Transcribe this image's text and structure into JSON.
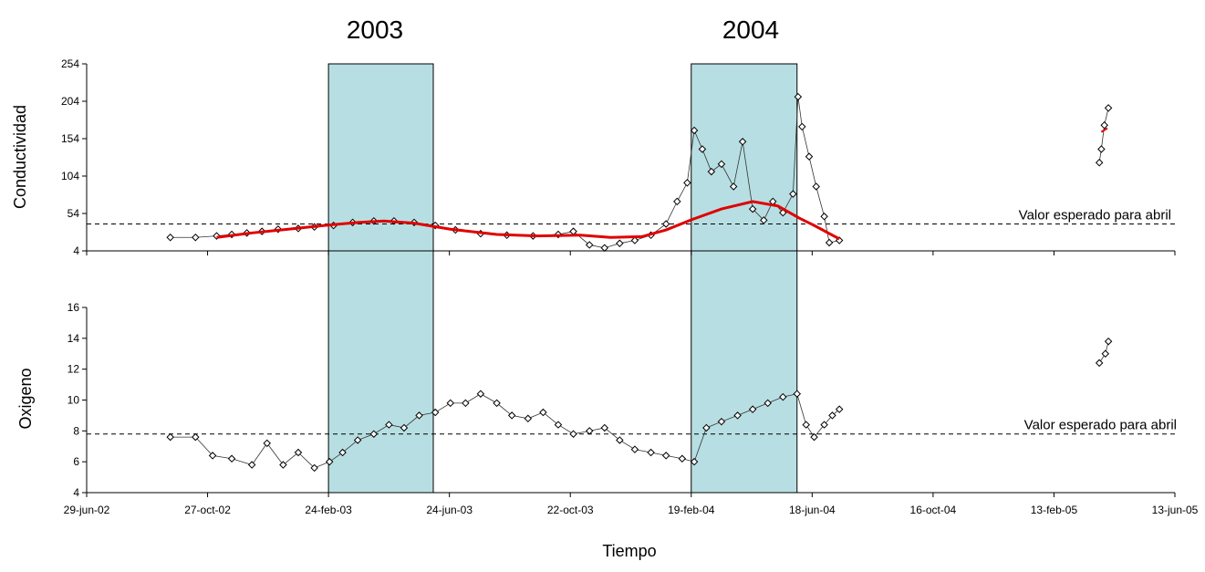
{
  "chart_data": {
    "type": "scatter",
    "period_labels": [
      "2003",
      "2004"
    ],
    "shaded_periods": [
      {
        "label": "2003",
        "start": "2003-02-24",
        "end": "2003-06-08"
      },
      {
        "label": "2004",
        "start": "2004-02-19",
        "end": "2004-06-03"
      }
    ],
    "xlabel": "Tiempo",
    "x_ticks": [
      "29-jun-02",
      "27-oct-02",
      "24-feb-03",
      "24-jun-03",
      "22-oct-03",
      "19-feb-04",
      "18-jun-04",
      "16-oct-04",
      "13-feb-05",
      "13-jun-05"
    ],
    "x_tick_dates": [
      "2002-06-29",
      "2002-10-27",
      "2003-02-24",
      "2003-06-24",
      "2003-10-22",
      "2004-02-19",
      "2004-06-18",
      "2004-10-16",
      "2005-02-13",
      "2005-06-13"
    ],
    "xlim": [
      "2002-06-29",
      "2005-06-13"
    ],
    "panels": [
      {
        "ylabel": "Conductividad",
        "ylim": [
          4,
          254
        ],
        "y_ticks": [
          "4",
          "54",
          "104",
          "154",
          "204",
          "254"
        ],
        "reference_line": {
          "value": 40,
          "label": "Valor esperado para abril"
        },
        "trend_color": "#e00000",
        "trend": [
          [
            "2002-11-05",
            22
          ],
          [
            "2002-12-10",
            28
          ],
          [
            "2003-01-15",
            33
          ],
          [
            "2003-02-20",
            38
          ],
          [
            "2003-03-25",
            42
          ],
          [
            "2003-04-20",
            44
          ],
          [
            "2003-05-20",
            41
          ],
          [
            "2003-06-25",
            33
          ],
          [
            "2003-08-10",
            26
          ],
          [
            "2003-09-20",
            24
          ],
          [
            "2003-11-01",
            25
          ],
          [
            "2003-12-01",
            22
          ],
          [
            "2004-01-01",
            23
          ],
          [
            "2004-01-25",
            32
          ],
          [
            "2004-02-20",
            46
          ],
          [
            "2004-03-20",
            60
          ],
          [
            "2004-04-20",
            70
          ],
          [
            "2004-05-15",
            64
          ],
          [
            "2004-06-05",
            48
          ],
          [
            "2004-06-20",
            38
          ],
          [
            "2004-07-15",
            20
          ]
        ],
        "trend2": [
          [
            "2005-04-01",
            163
          ],
          [
            "2005-04-07",
            168
          ]
        ],
        "series": {
          "name": "",
          "points": [
            [
              "2002-09-20",
              22
            ],
            [
              "2002-10-15",
              22
            ],
            [
              "2002-11-05",
              24
            ],
            [
              "2002-11-20",
              26
            ],
            [
              "2002-12-05",
              28
            ],
            [
              "2002-12-20",
              30
            ],
            [
              "2003-01-05",
              33
            ],
            [
              "2003-01-25",
              34
            ],
            [
              "2003-02-10",
              36
            ],
            [
              "2003-03-01",
              38
            ],
            [
              "2003-03-20",
              42
            ],
            [
              "2003-04-10",
              44
            ],
            [
              "2003-04-30",
              44
            ],
            [
              "2003-05-20",
              42
            ],
            [
              "2003-06-10",
              38
            ],
            [
              "2003-06-30",
              32
            ],
            [
              "2003-07-25",
              27
            ],
            [
              "2003-08-20",
              25
            ],
            [
              "2003-09-15",
              24
            ],
            [
              "2003-10-10",
              26
            ],
            [
              "2003-10-25",
              30
            ],
            [
              "2003-11-10",
              12
            ],
            [
              "2003-11-25",
              8
            ],
            [
              "2003-12-10",
              14
            ],
            [
              "2003-12-25",
              18
            ],
            [
              "2004-01-10",
              25
            ],
            [
              "2004-01-25",
              40
            ],
            [
              "2004-02-05",
              70
            ],
            [
              "2004-02-15",
              95
            ],
            [
              "2004-02-22",
              165
            ],
            [
              "2004-03-01",
              140
            ],
            [
              "2004-03-10",
              110
            ],
            [
              "2004-03-20",
              120
            ],
            [
              "2004-04-01",
              90
            ],
            [
              "2004-04-10",
              150
            ],
            [
              "2004-04-20",
              60
            ],
            [
              "2004-05-01",
              45
            ],
            [
              "2004-05-10",
              70
            ],
            [
              "2004-05-20",
              55
            ],
            [
              "2004-05-30",
              80
            ],
            [
              "2004-06-04",
              210
            ],
            [
              "2004-06-08",
              170
            ],
            [
              "2004-06-15",
              130
            ],
            [
              "2004-06-22",
              90
            ],
            [
              "2004-06-30",
              50
            ],
            [
              "2004-07-05",
              15
            ],
            [
              "2004-07-15",
              18
            ],
            [
              "2005-03-30",
              122
            ],
            [
              "2005-04-01",
              140
            ],
            [
              "2005-04-04",
              172
            ],
            [
              "2005-04-08",
              195
            ]
          ]
        }
      },
      {
        "ylabel": "Oxigeno",
        "ylim": [
          4,
          16
        ],
        "y_ticks": [
          "4",
          "6",
          "8",
          "10",
          "12",
          "14",
          "16"
        ],
        "reference_line": {
          "value": 7.8,
          "label": "Valor esperado para abril"
        },
        "series": {
          "name": "",
          "points": [
            [
              "2002-09-20",
              7.6
            ],
            [
              "2002-10-15",
              7.6
            ],
            [
              "2002-11-01",
              6.4
            ],
            [
              "2002-11-20",
              6.2
            ],
            [
              "2002-12-10",
              5.8
            ],
            [
              "2002-12-25",
              7.2
            ],
            [
              "2003-01-10",
              5.8
            ],
            [
              "2003-01-25",
              6.6
            ],
            [
              "2003-02-10",
              5.6
            ],
            [
              "2003-02-25",
              6.0
            ],
            [
              "2003-03-10",
              6.6
            ],
            [
              "2003-03-25",
              7.4
            ],
            [
              "2003-04-10",
              7.8
            ],
            [
              "2003-04-25",
              8.4
            ],
            [
              "2003-05-10",
              8.2
            ],
            [
              "2003-05-25",
              9.0
            ],
            [
              "2003-06-10",
              9.2
            ],
            [
              "2003-06-25",
              9.8
            ],
            [
              "2003-07-10",
              9.8
            ],
            [
              "2003-07-25",
              10.4
            ],
            [
              "2003-08-10",
              9.8
            ],
            [
              "2003-08-25",
              9.0
            ],
            [
              "2003-09-10",
              8.8
            ],
            [
              "2003-09-25",
              9.2
            ],
            [
              "2003-10-10",
              8.4
            ],
            [
              "2003-10-25",
              7.8
            ],
            [
              "2003-11-10",
              8.0
            ],
            [
              "2003-11-25",
              8.2
            ],
            [
              "2003-12-10",
              7.4
            ],
            [
              "2003-12-25",
              6.8
            ],
            [
              "2004-01-10",
              6.6
            ],
            [
              "2004-01-25",
              6.4
            ],
            [
              "2004-02-10",
              6.2
            ],
            [
              "2004-02-22",
              6.0
            ],
            [
              "2004-03-05",
              8.2
            ],
            [
              "2004-03-20",
              8.6
            ],
            [
              "2004-04-05",
              9.0
            ],
            [
              "2004-04-20",
              9.4
            ],
            [
              "2004-05-05",
              9.8
            ],
            [
              "2004-05-20",
              10.2
            ],
            [
              "2004-06-03",
              10.4
            ],
            [
              "2004-06-12",
              8.4
            ],
            [
              "2004-06-20",
              7.6
            ],
            [
              "2004-06-30",
              8.4
            ],
            [
              "2004-07-08",
              9.0
            ],
            [
              "2004-07-15",
              9.4
            ],
            [
              "2005-03-30",
              12.4
            ],
            [
              "2005-04-05",
              13.0
            ],
            [
              "2005-04-08",
              13.8
            ]
          ]
        }
      }
    ]
  }
}
